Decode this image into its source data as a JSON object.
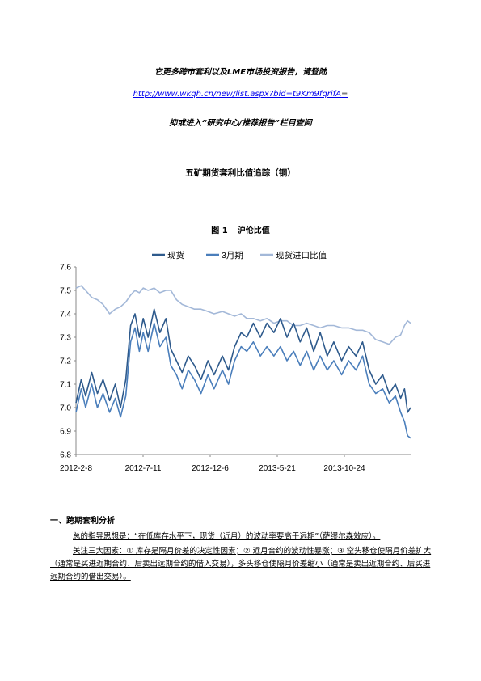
{
  "promo": {
    "line1": "它更多跨市套利以及LME市场投资报告，请登陆",
    "link": "http://www.wkqh.cn/new/list.aspx?bid=t9Km9fqrifA",
    "link_suffix": "=",
    "line3": "抑或进入“研究中心/推荐报告”栏目查阅"
  },
  "doc_title": "五矿期货套利比值追踪（铜）",
  "figure": {
    "label": "图 1",
    "title": "沪伦比值"
  },
  "chart_data": {
    "type": "line",
    "title": "",
    "xlabel": "",
    "ylabel": "",
    "x_ticks": [
      "2012-2-8",
      "2012-7-11",
      "2012-12-6",
      "2013-5-21",
      "2013-10-24"
    ],
    "x_range": [
      "2012-02-08",
      "2014-03-15"
    ],
    "ylim": [
      6.8,
      7.6
    ],
    "y_ticks": [
      "6.8",
      "6.9",
      "7.0",
      "7.1",
      "7.2",
      "7.3",
      "7.4",
      "7.5",
      "7.6"
    ],
    "grid": false,
    "legend_position": "top",
    "series": [
      {
        "name": "现货",
        "color": "#2e5a8c",
        "points": [
          [
            "2012-02-08",
            7.02
          ],
          [
            "2012-02-20",
            7.12
          ],
          [
            "2012-03-01",
            7.05
          ],
          [
            "2012-03-15",
            7.15
          ],
          [
            "2012-03-28",
            7.06
          ],
          [
            "2012-04-10",
            7.12
          ],
          [
            "2012-04-25",
            7.03
          ],
          [
            "2012-05-08",
            7.1
          ],
          [
            "2012-05-20",
            7.0
          ],
          [
            "2012-06-01",
            7.12
          ],
          [
            "2012-06-12",
            7.35
          ],
          [
            "2012-06-22",
            7.4
          ],
          [
            "2012-07-02",
            7.3
          ],
          [
            "2012-07-11",
            7.38
          ],
          [
            "2012-07-22",
            7.3
          ],
          [
            "2012-08-05",
            7.42
          ],
          [
            "2012-08-18",
            7.32
          ],
          [
            "2012-09-01",
            7.38
          ],
          [
            "2012-09-12",
            7.25
          ],
          [
            "2012-09-25",
            7.2
          ],
          [
            "2012-10-08",
            7.15
          ],
          [
            "2012-10-22",
            7.22
          ],
          [
            "2012-11-05",
            7.18
          ],
          [
            "2012-11-20",
            7.12
          ],
          [
            "2012-12-06",
            7.2
          ],
          [
            "2012-12-20",
            7.14
          ],
          [
            "2013-01-08",
            7.22
          ],
          [
            "2013-01-22",
            7.16
          ],
          [
            "2013-02-05",
            7.26
          ],
          [
            "2013-02-20",
            7.32
          ],
          [
            "2013-03-05",
            7.3
          ],
          [
            "2013-03-20",
            7.36
          ],
          [
            "2013-04-05",
            7.3
          ],
          [
            "2013-04-20",
            7.36
          ],
          [
            "2013-05-06",
            7.32
          ],
          [
            "2013-05-21",
            7.38
          ],
          [
            "2013-06-05",
            7.3
          ],
          [
            "2013-06-20",
            7.36
          ],
          [
            "2013-07-05",
            7.28
          ],
          [
            "2013-07-20",
            7.34
          ],
          [
            "2013-08-05",
            7.24
          ],
          [
            "2013-08-20",
            7.32
          ],
          [
            "2013-09-05",
            7.22
          ],
          [
            "2013-09-20",
            7.28
          ],
          [
            "2013-10-08",
            7.2
          ],
          [
            "2013-10-24",
            7.26
          ],
          [
            "2013-11-10",
            7.22
          ],
          [
            "2013-11-25",
            7.28
          ],
          [
            "2013-12-10",
            7.16
          ],
          [
            "2013-12-25",
            7.1
          ],
          [
            "2014-01-10",
            7.14
          ],
          [
            "2014-01-25",
            7.06
          ],
          [
            "2014-02-08",
            7.1
          ],
          [
            "2014-02-20",
            7.04
          ],
          [
            "2014-03-01",
            7.08
          ],
          [
            "2014-03-08",
            6.98
          ],
          [
            "2014-03-15",
            7.0
          ]
        ]
      },
      {
        "name": "3月期",
        "color": "#4a7ebb",
        "points": [
          [
            "2012-02-08",
            6.98
          ],
          [
            "2012-02-20",
            7.08
          ],
          [
            "2012-03-01",
            7.0
          ],
          [
            "2012-03-15",
            7.1
          ],
          [
            "2012-03-28",
            7.0
          ],
          [
            "2012-04-10",
            7.06
          ],
          [
            "2012-04-25",
            6.98
          ],
          [
            "2012-05-08",
            7.04
          ],
          [
            "2012-05-20",
            6.96
          ],
          [
            "2012-06-01",
            7.05
          ],
          [
            "2012-06-12",
            7.28
          ],
          [
            "2012-06-22",
            7.34
          ],
          [
            "2012-07-02",
            7.24
          ],
          [
            "2012-07-11",
            7.32
          ],
          [
            "2012-07-22",
            7.24
          ],
          [
            "2012-08-05",
            7.36
          ],
          [
            "2012-08-18",
            7.26
          ],
          [
            "2012-09-01",
            7.3
          ],
          [
            "2012-09-12",
            7.18
          ],
          [
            "2012-09-25",
            7.14
          ],
          [
            "2012-10-08",
            7.08
          ],
          [
            "2012-10-22",
            7.16
          ],
          [
            "2012-11-05",
            7.12
          ],
          [
            "2012-11-20",
            7.06
          ],
          [
            "2012-12-06",
            7.14
          ],
          [
            "2012-12-20",
            7.08
          ],
          [
            "2013-01-08",
            7.16
          ],
          [
            "2013-01-22",
            7.1
          ],
          [
            "2013-02-05",
            7.2
          ],
          [
            "2013-02-20",
            7.26
          ],
          [
            "2013-03-05",
            7.24
          ],
          [
            "2013-03-20",
            7.28
          ],
          [
            "2013-04-05",
            7.22
          ],
          [
            "2013-04-20",
            7.26
          ],
          [
            "2013-05-06",
            7.22
          ],
          [
            "2013-05-21",
            7.26
          ],
          [
            "2013-06-05",
            7.2
          ],
          [
            "2013-06-20",
            7.24
          ],
          [
            "2013-07-05",
            7.18
          ],
          [
            "2013-07-20",
            7.24
          ],
          [
            "2013-08-05",
            7.16
          ],
          [
            "2013-08-20",
            7.22
          ],
          [
            "2013-09-05",
            7.16
          ],
          [
            "2013-09-20",
            7.2
          ],
          [
            "2013-10-08",
            7.14
          ],
          [
            "2013-10-24",
            7.2
          ],
          [
            "2013-11-10",
            7.16
          ],
          [
            "2013-11-25",
            7.22
          ],
          [
            "2013-12-10",
            7.1
          ],
          [
            "2013-12-25",
            7.06
          ],
          [
            "2014-01-10",
            7.08
          ],
          [
            "2014-01-25",
            7.02
          ],
          [
            "2014-02-08",
            7.05
          ],
          [
            "2014-02-20",
            6.98
          ],
          [
            "2014-03-01",
            6.94
          ],
          [
            "2014-03-08",
            6.88
          ],
          [
            "2014-03-15",
            6.87
          ]
        ]
      },
      {
        "name": "现货进口比值",
        "color": "#a3b8d8",
        "points": [
          [
            "2012-02-08",
            7.51
          ],
          [
            "2012-02-20",
            7.52
          ],
          [
            "2012-03-01",
            7.5
          ],
          [
            "2012-03-15",
            7.47
          ],
          [
            "2012-03-28",
            7.46
          ],
          [
            "2012-04-10",
            7.44
          ],
          [
            "2012-04-25",
            7.4
          ],
          [
            "2012-05-08",
            7.42
          ],
          [
            "2012-05-20",
            7.43
          ],
          [
            "2012-06-01",
            7.45
          ],
          [
            "2012-06-12",
            7.48
          ],
          [
            "2012-06-22",
            7.5
          ],
          [
            "2012-07-02",
            7.49
          ],
          [
            "2012-07-11",
            7.51
          ],
          [
            "2012-07-22",
            7.5
          ],
          [
            "2012-08-05",
            7.51
          ],
          [
            "2012-08-18",
            7.49
          ],
          [
            "2012-09-01",
            7.5
          ],
          [
            "2012-09-12",
            7.5
          ],
          [
            "2012-09-25",
            7.46
          ],
          [
            "2012-10-08",
            7.44
          ],
          [
            "2012-10-22",
            7.43
          ],
          [
            "2012-11-05",
            7.42
          ],
          [
            "2012-11-20",
            7.42
          ],
          [
            "2012-12-06",
            7.41
          ],
          [
            "2012-12-20",
            7.4
          ],
          [
            "2013-01-08",
            7.41
          ],
          [
            "2013-01-22",
            7.4
          ],
          [
            "2013-02-05",
            7.39
          ],
          [
            "2013-02-20",
            7.4
          ],
          [
            "2013-03-05",
            7.38
          ],
          [
            "2013-03-20",
            7.38
          ],
          [
            "2013-04-05",
            7.37
          ],
          [
            "2013-04-20",
            7.38
          ],
          [
            "2013-05-06",
            7.36
          ],
          [
            "2013-05-21",
            7.37
          ],
          [
            "2013-06-05",
            7.37
          ],
          [
            "2013-06-20",
            7.35
          ],
          [
            "2013-07-05",
            7.35
          ],
          [
            "2013-07-20",
            7.36
          ],
          [
            "2013-08-05",
            7.35
          ],
          [
            "2013-08-20",
            7.34
          ],
          [
            "2013-09-05",
            7.35
          ],
          [
            "2013-09-20",
            7.35
          ],
          [
            "2013-10-08",
            7.34
          ],
          [
            "2013-10-24",
            7.34
          ],
          [
            "2013-11-10",
            7.33
          ],
          [
            "2013-11-25",
            7.33
          ],
          [
            "2013-12-10",
            7.32
          ],
          [
            "2013-12-25",
            7.29
          ],
          [
            "2014-01-10",
            7.28
          ],
          [
            "2014-01-25",
            7.27
          ],
          [
            "2014-02-08",
            7.3
          ],
          [
            "2014-02-20",
            7.31
          ],
          [
            "2014-03-01",
            7.35
          ],
          [
            "2014-03-08",
            7.37
          ],
          [
            "2014-03-15",
            7.36
          ]
        ]
      }
    ]
  },
  "section": {
    "heading": "一、跨期套利分析",
    "para1": "总的指导思想是：“在低库存水平下，现货（近月）的波动率要高于远期”（萨缪尔森效应）。",
    "para2": "关注三大因素：① 库存是隔月价差的决定性因素；② 近月合约的波动性暴涨；③ 空头移仓使隔月价差扩大（通常是买进近期合约、后卖出远期合约的借入交易），多头移仓使隔月价差缩小（通常是卖出近期合约、后买进远期合约的借出交易）。"
  }
}
